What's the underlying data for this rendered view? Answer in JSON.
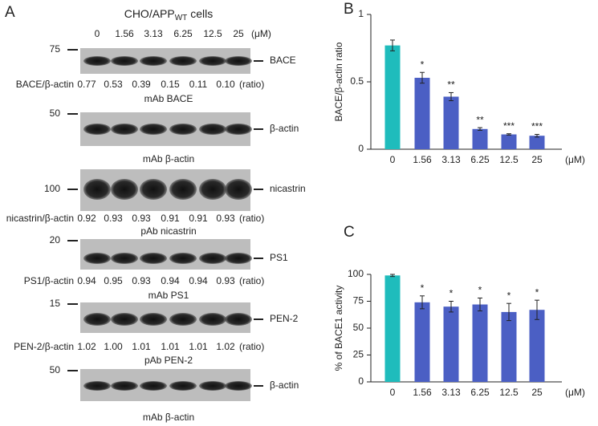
{
  "panel_a": {
    "label": "A",
    "title_prefix": "CHO/APP",
    "title_subscript": "WT",
    "title_suffix": "cells",
    "concentrations": [
      "0",
      "1.56",
      "3.13",
      "6.25",
      "12.5",
      "25"
    ],
    "unit": "(μM)",
    "ratio_unit": "(ratio)",
    "blots": [
      {
        "marker": "75",
        "label": "BACE",
        "ratio_label": "BACE/β-actin",
        "ratios": [
          "0.77",
          "0.53",
          "0.39",
          "0.15",
          "0.11",
          "0.10"
        ],
        "antibody": "mAb BACE"
      },
      {
        "marker": "50",
        "label": "β-actin",
        "antibody": "mAb β-actin"
      },
      {
        "marker": "100",
        "label": "nicastrin",
        "ratio_label": "nicastrin/β-actin",
        "ratios": [
          "0.92",
          "0.93",
          "0.93",
          "0.91",
          "0.91",
          "0.93"
        ],
        "antibody": "pAb nicastrin"
      },
      {
        "marker": "20",
        "label": "PS1",
        "ratio_label": "PS1/β-actin",
        "ratios": [
          "0.94",
          "0.95",
          "0.93",
          "0.94",
          "0.94",
          "0.93"
        ],
        "antibody": "mAb PS1"
      },
      {
        "marker": "15",
        "label": "PEN-2",
        "ratio_label": "PEN-2/β-actin",
        "ratios": [
          "1.02",
          "1.00",
          "1.01",
          "1.01",
          "1.01",
          "1.02"
        ],
        "antibody": "pAb PEN-2"
      },
      {
        "marker": "50",
        "label": "β-actin",
        "antibody": "mAb β-actin"
      }
    ]
  },
  "chart_data": [
    {
      "type": "bar",
      "panel": "B",
      "ylabel": "BACE/β-actin ratio",
      "unit": "(μM)",
      "categories": [
        "0",
        "1.56",
        "3.13",
        "6.25",
        "12.5",
        "25"
      ],
      "values": [
        0.77,
        0.53,
        0.39,
        0.15,
        0.11,
        0.1
      ],
      "errors": [
        0.04,
        0.04,
        0.03,
        0.01,
        0.005,
        0.01
      ],
      "annotations": [
        null,
        "*",
        "**",
        "**",
        "***",
        "***"
      ],
      "colors": [
        "#1fbcbc",
        "#4b5fc4",
        "#4b5fc4",
        "#4b5fc4",
        "#4b5fc4",
        "#4b5fc4"
      ],
      "ylim": [
        0,
        1
      ],
      "yticks": [
        0,
        0.5,
        1
      ]
    },
    {
      "type": "bar",
      "panel": "C",
      "ylabel": "% of BACE1 activity",
      "unit": "(μM)",
      "categories": [
        "0",
        "1.56",
        "3.13",
        "6.25",
        "12.5",
        "25"
      ],
      "values": [
        99,
        74,
        70,
        72,
        65,
        67
      ],
      "errors": [
        1,
        6,
        5,
        6,
        8,
        9
      ],
      "annotations": [
        null,
        "*",
        "*",
        "*",
        "*",
        "*"
      ],
      "colors": [
        "#1fbcbc",
        "#4b5fc4",
        "#4b5fc4",
        "#4b5fc4",
        "#4b5fc4",
        "#4b5fc4"
      ],
      "ylim": [
        0,
        100
      ],
      "yticks": [
        0,
        25,
        50,
        75,
        100
      ]
    }
  ]
}
